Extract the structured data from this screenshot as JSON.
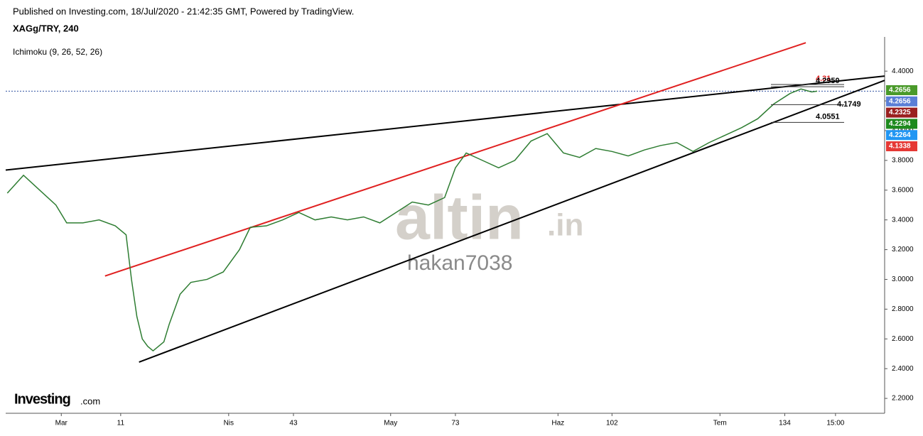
{
  "header": {
    "published": "Published on Investing.com, 18/Jul/2020 - 21:42:35 GMT, Powered by TradingView.",
    "symbol": "XAGg/TRY, 240"
  },
  "chart_data": {
    "type": "line",
    "indicator": "Ichimoku (9, 26, 52, 26)",
    "x": [
      -10,
      -7,
      -4,
      -1,
      1,
      4,
      7,
      10,
      12,
      13,
      14,
      15,
      16,
      17,
      19,
      20,
      22,
      24,
      27,
      30,
      33,
      35,
      38,
      41,
      44,
      47,
      50,
      53,
      56,
      59,
      62,
      65,
      68,
      71,
      73,
      75,
      78,
      81,
      84,
      87,
      90,
      93,
      96,
      99,
      102,
      105,
      108,
      111,
      114,
      117,
      120,
      123,
      126,
      129,
      132,
      135,
      137,
      139,
      140
    ],
    "values": [
      3.58,
      3.7,
      3.6,
      3.5,
      3.38,
      3.38,
      3.4,
      3.36,
      3.3,
      3.0,
      2.75,
      2.6,
      2.55,
      2.52,
      2.58,
      2.7,
      2.9,
      2.98,
      3.0,
      3.05,
      3.2,
      3.35,
      3.36,
      3.4,
      3.45,
      3.4,
      3.42,
      3.4,
      3.42,
      3.38,
      3.45,
      3.52,
      3.5,
      3.55,
      3.75,
      3.85,
      3.8,
      3.75,
      3.8,
      3.93,
      3.98,
      3.85,
      3.82,
      3.88,
      3.86,
      3.83,
      3.87,
      3.9,
      3.92,
      3.86,
      3.92,
      3.97,
      4.02,
      4.08,
      4.18,
      4.25,
      4.28,
      4.26,
      4.2656
    ],
    "color": "#2e7d32",
    "xlim": [
      -10.3,
      152.5
    ],
    "ylim": [
      2.1,
      4.63
    ],
    "xticks": [
      {
        "value": 0,
        "label": "Mar"
      },
      11,
      {
        "value": 31,
        "label": "Nis"
      },
      43,
      {
        "value": 61,
        "label": "May"
      },
      73,
      {
        "value": 92,
        "label": "Haz"
      },
      102,
      {
        "value": 122,
        "label": "Tem"
      },
      134,
      {
        "value": 143.4,
        "label": "15:00"
      }
    ],
    "yticks": [
      {
        "value": 2.2,
        "label": "2.2000"
      },
      {
        "value": 2.4,
        "label": "2.4000"
      },
      {
        "value": 2.6,
        "label": "2.6000"
      },
      {
        "value": 2.8,
        "label": "2.8000"
      },
      {
        "value": 3.0,
        "label": "3.0000"
      },
      {
        "value": 3.2,
        "label": "3.2000"
      },
      {
        "value": 3.4,
        "label": "3.4000"
      },
      {
        "value": 3.6,
        "label": "3.6000"
      },
      {
        "value": 3.8,
        "label": "3.8000"
      },
      {
        "value": 4.0,
        "label": "4.0000"
      },
      {
        "value": 4.2,
        "label": "4.2000"
      },
      {
        "value": 4.4,
        "label": "4.4000"
      }
    ],
    "trendlines": [
      {
        "color": "#000000",
        "x": [
          -10.3,
          152.5
        ],
        "y": [
          3.735,
          4.367
        ]
      },
      {
        "color": "#000000",
        "x": [
          14.4,
          152.5
        ],
        "y": [
          2.444,
          4.338
        ]
      },
      {
        "color": "#e02020",
        "x": [
          8.1,
          137.9
        ],
        "y": [
          3.023,
          4.591
        ]
      }
    ],
    "price_line": 4.2656,
    "annotations": [
      {
        "value": 4.31,
        "color": "#e02020"
      },
      {
        "value": 4.295,
        "label": "4.2950",
        "color": "#000000"
      },
      {
        "value": 4.1749,
        "color": "#000000"
      },
      {
        "value": 4.0551,
        "color": "#000000"
      }
    ],
    "price_tags": [
      {
        "value": 4.2656,
        "color": "#4a9a2a"
      },
      {
        "value": 4.2656,
        "color": "#5b7fd6"
      },
      {
        "value": 4.2325,
        "color": "#9a2020"
      },
      {
        "value": 4.2294,
        "color": "#1e8a1e"
      },
      {
        "value": 4.2264,
        "color": "#2196f3"
      },
      {
        "value": 4.1338,
        "color": "#e53935"
      }
    ]
  },
  "watermark": {
    "brand": "altin",
    "brand_suffix": ".in",
    "user": "hakan7038"
  },
  "logo": {
    "name": "Investing",
    "suffix": ".com"
  }
}
